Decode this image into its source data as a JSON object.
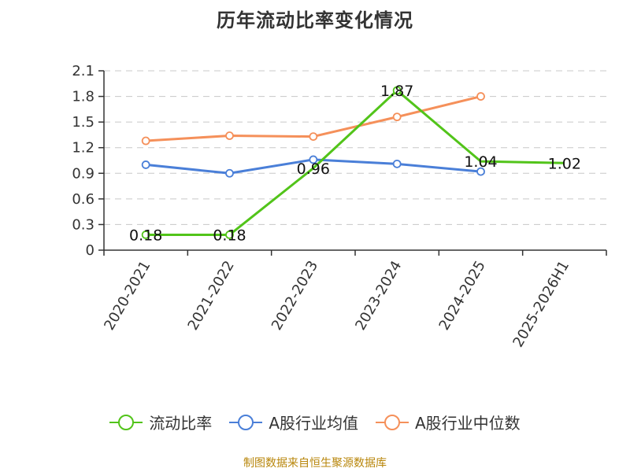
{
  "title": "历年流动比率变化情况",
  "source": "制图数据来自恒生聚源数据库",
  "chart_data": {
    "type": "line",
    "categories": [
      "2020-2021",
      "2021-2022",
      "2022-2023",
      "2023-2024",
      "2024-2025",
      "2025-2026H1"
    ],
    "ylim": [
      0,
      2.1
    ],
    "yticks": [
      "0",
      "0.3",
      "0.6",
      "0.9",
      "1.2",
      "1.5",
      "1.8",
      "2.1"
    ],
    "grid": true,
    "legend_position": "bottom",
    "series": [
      {
        "name": "流动比率",
        "color": "#52c41a",
        "values": [
          0.18,
          0.18,
          0.96,
          1.87,
          1.04,
          1.02
        ],
        "labels": [
          "0.18",
          "0.18",
          "0.96",
          "1.87",
          "1.04",
          "1.02"
        ],
        "markers": [
          true,
          true,
          false,
          true,
          false,
          false
        ]
      },
      {
        "name": "A股行业均值",
        "color": "#4a7fd8",
        "values": [
          1.0,
          0.9,
          1.06,
          1.01,
          0.92,
          null
        ],
        "markers": [
          true,
          true,
          true,
          true,
          true,
          false
        ]
      },
      {
        "name": "A股行业中位数",
        "color": "#f5905a",
        "values": [
          1.28,
          1.34,
          1.33,
          1.56,
          1.8,
          null
        ],
        "markers": [
          true,
          true,
          true,
          true,
          true,
          false
        ]
      }
    ]
  }
}
